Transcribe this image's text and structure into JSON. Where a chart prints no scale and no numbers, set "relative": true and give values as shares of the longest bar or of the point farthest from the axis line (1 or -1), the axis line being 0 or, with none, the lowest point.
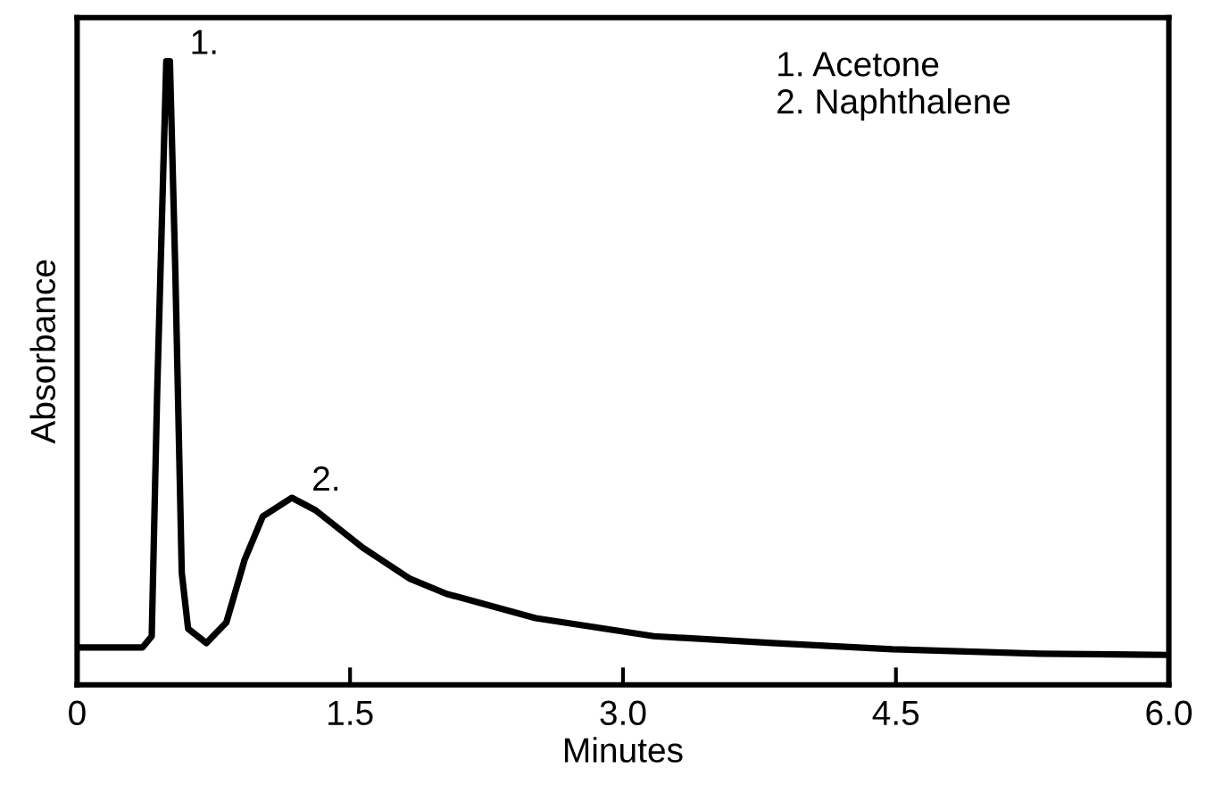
{
  "chart_data": {
    "type": "line",
    "relative": true,
    "xlabel": "Minutes",
    "ylabel": "Absorbance",
    "xlim": [
      0,
      6.0
    ],
    "xticks": [
      0,
      {
        "value": 1.5,
        "label": "1.5"
      },
      {
        "value": 3.0,
        "label": "3.0"
      },
      {
        "value": 4.5,
        "label": "4.5"
      },
      {
        "value": 6.0,
        "label": "6.0"
      }
    ],
    "x": [
      0,
      0.36,
      0.41,
      0.44,
      0.49,
      0.51,
      0.54,
      0.575,
      0.61,
      0.71,
      0.82,
      0.92,
      1.02,
      1.18,
      1.31,
      1.57,
      1.83,
      2.03,
      2.52,
      3.17,
      3.82,
      4.48,
      5.29,
      6.0
    ],
    "series": [
      {
        "color": "#000000",
        "values": [
          0.06,
          0.06,
          0.078,
          0.47,
          1.0,
          1.0,
          0.66,
          0.18,
          0.09,
          0.067,
          0.1,
          0.2,
          0.27,
          0.3,
          0.28,
          0.22,
          0.17,
          0.146,
          0.107,
          0.078,
          0.067,
          0.057,
          0.05,
          0.048
        ]
      }
    ],
    "annotations": [
      {
        "text": "1.",
        "x": 0.51,
        "y": 1.0
      },
      {
        "text": "2.",
        "x": 1.18,
        "y": 0.3
      },
      "1. Acetone\n2. Naphthalene"
    ],
    "grid": false,
    "legend": false,
    "marker": "none",
    "line_style": "solid",
    "tick_labels": "x"
  }
}
